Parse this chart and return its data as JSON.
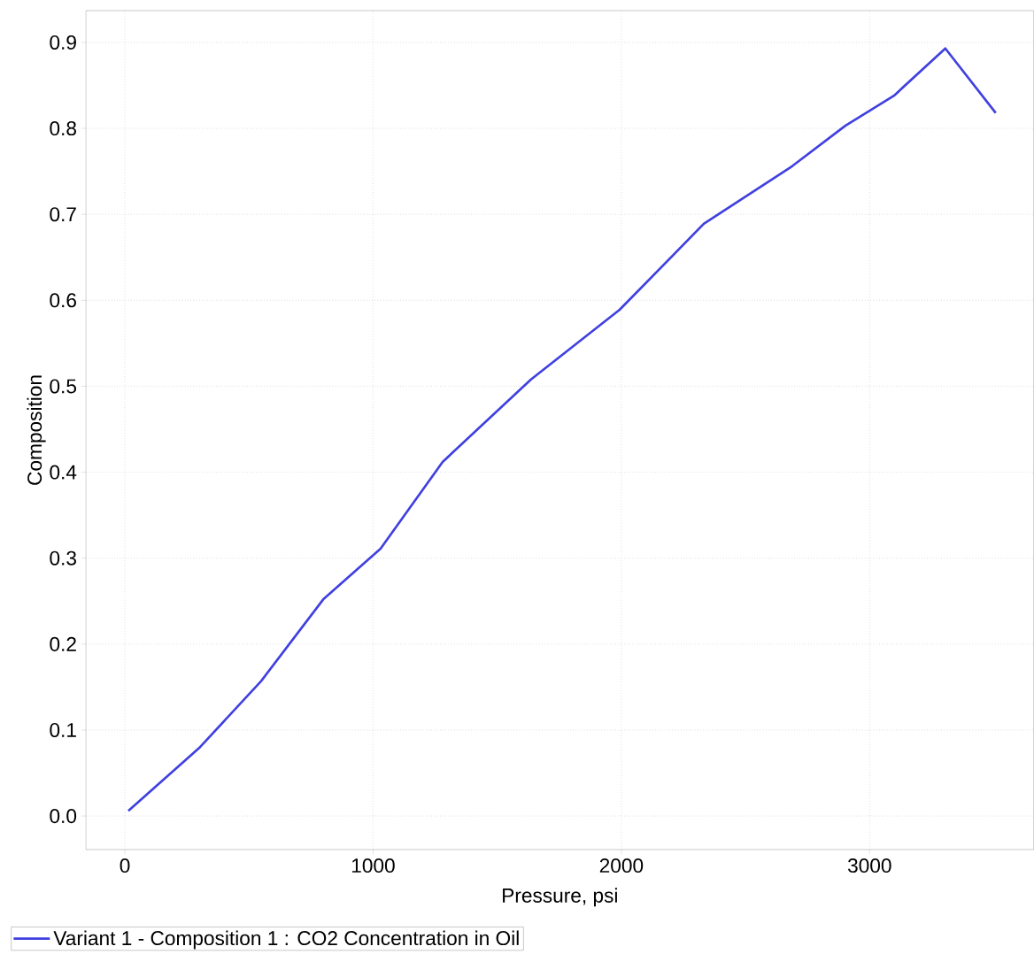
{
  "chart_data": {
    "type": "line",
    "xlabel": "Pressure, psi",
    "ylabel": "Composition",
    "xlim": [
      -157,
      3661
    ],
    "ylim": [
      -0.039,
      0.937
    ],
    "xticks": [
      0,
      1000,
      2000,
      3000
    ],
    "yticks": [
      {
        "value": 0,
        "label": "0.0"
      },
      0.1,
      0.2,
      0.3,
      0.4,
      0.5,
      0.6,
      0.7,
      0.8,
      0.9
    ],
    "grid": true,
    "legend": "bottom left",
    "line_style": "solid",
    "marker": "none",
    "series": [
      {
        "name": "Variant 1 - Composition 1 : CO2 Concentration in Oil",
        "color": "#4040e0",
        "x": [
          14,
          299,
          549,
          799,
          1030,
          1280,
          1636,
          1993,
          2332,
          2688,
          2902,
          3098,
          3305,
          3508
        ],
        "values": [
          0.006,
          0.079,
          0.157,
          0.252,
          0.311,
          0.412,
          0.508,
          0.589,
          0.689,
          0.756,
          0.803,
          0.838,
          0.893,
          0.818
        ]
      }
    ]
  }
}
